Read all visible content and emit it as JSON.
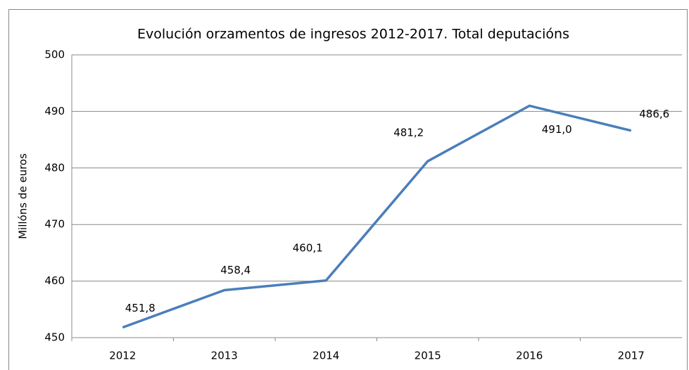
{
  "chart_data": {
    "type": "line",
    "title": "Evolución orzamentos de ingresos 2012-2017. Total deputacións",
    "y_label": "Millóns de euros",
    "categories": [
      "2012",
      "2013",
      "2014",
      "2015",
      "2016",
      "2017"
    ],
    "series": [
      {
        "name": "Total deputacións",
        "color": "#4a7ebb",
        "values": [
          451.8,
          458.4,
          460.1,
          481.2,
          491.0,
          486.6
        ],
        "value_labels": [
          "451,8",
          "458,4",
          "460,1",
          "481,2",
          "491,0",
          "486,6"
        ]
      }
    ],
    "ylim": [
      450,
      500
    ],
    "yticks": [
      450,
      460,
      470,
      480,
      490,
      500
    ],
    "grid": true
  }
}
